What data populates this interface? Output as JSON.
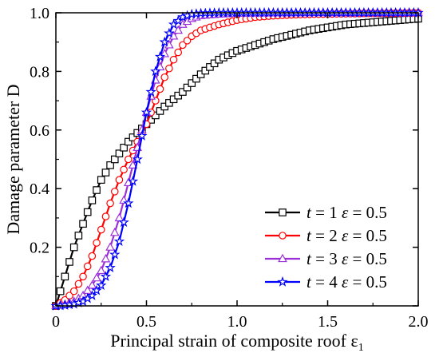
{
  "chart_data": {
    "type": "line",
    "xlabel": "Principal strain of composite roof ε",
    "xlabel_sub": "1",
    "ylabel": "Damage parameter D",
    "xlim": [
      0,
      2.0
    ],
    "ylim": [
      0,
      1.0
    ],
    "x_ticks": [
      "0",
      "0.5",
      "1.0",
      "1.5",
      "2.0"
    ],
    "y_ticks": [
      "0.2",
      "0.4",
      "0.6",
      "0.8",
      "1.0"
    ],
    "legend_position": "bottom-right",
    "grid": false,
    "series": [
      {
        "name": "t = 1 ε = 0.5",
        "t": "1",
        "eps": "0.5",
        "color": "#000000",
        "marker": "square",
        "x": [
          0.0,
          0.05,
          0.1,
          0.15,
          0.2,
          0.25,
          0.3,
          0.35,
          0.4,
          0.45,
          0.5,
          0.55,
          0.6,
          0.7,
          0.8,
          0.9,
          1.0,
          1.1,
          1.2,
          1.3,
          1.4,
          1.5,
          1.6,
          1.7,
          1.8,
          1.9,
          2.0
        ],
        "y": [
          0.0,
          0.1,
          0.2,
          0.28,
          0.36,
          0.43,
          0.48,
          0.52,
          0.56,
          0.59,
          0.62,
          0.65,
          0.68,
          0.73,
          0.79,
          0.84,
          0.87,
          0.89,
          0.91,
          0.925,
          0.94,
          0.95,
          0.96,
          0.965,
          0.97,
          0.975,
          0.98
        ]
      },
      {
        "name": "t = 2 ε = 0.5",
        "t": "2",
        "eps": "0.5",
        "color": "#ff0000",
        "marker": "circle",
        "x": [
          0.0,
          0.05,
          0.1,
          0.15,
          0.2,
          0.25,
          0.3,
          0.35,
          0.4,
          0.45,
          0.5,
          0.55,
          0.6,
          0.65,
          0.7,
          0.75,
          0.8,
          0.9,
          1.0,
          1.1,
          1.2,
          1.3,
          1.4,
          1.5,
          1.6,
          1.7,
          1.8,
          1.9,
          2.0
        ],
        "y": [
          0.0,
          0.02,
          0.05,
          0.1,
          0.17,
          0.26,
          0.35,
          0.43,
          0.5,
          0.56,
          0.62,
          0.7,
          0.78,
          0.84,
          0.89,
          0.92,
          0.94,
          0.96,
          0.975,
          0.985,
          0.99,
          0.993,
          0.995,
          0.996,
          0.997,
          0.998,
          0.998,
          0.999,
          1.0
        ]
      },
      {
        "name": "t = 3 ε = 0.5",
        "t": "3",
        "eps": "0.5",
        "color": "#9b30d9",
        "marker": "triangle",
        "x": [
          0.0,
          0.05,
          0.1,
          0.15,
          0.2,
          0.25,
          0.3,
          0.35,
          0.4,
          0.45,
          0.5,
          0.55,
          0.6,
          0.65,
          0.7,
          0.75,
          0.8,
          0.9,
          1.0,
          1.2,
          1.4,
          1.6,
          1.8,
          2.0
        ],
        "y": [
          0.0,
          0.005,
          0.015,
          0.035,
          0.07,
          0.12,
          0.2,
          0.3,
          0.42,
          0.54,
          0.66,
          0.77,
          0.86,
          0.92,
          0.96,
          0.98,
          0.99,
          0.995,
          0.998,
          0.999,
          1.0,
          1.0,
          1.0,
          1.0
        ]
      },
      {
        "name": "t = 4 ε = 0.5",
        "t": "4",
        "eps": "0.5",
        "color": "#0000ff",
        "marker": "star",
        "x": [
          0.0,
          0.05,
          0.1,
          0.15,
          0.2,
          0.25,
          0.3,
          0.35,
          0.4,
          0.45,
          0.5,
          0.55,
          0.6,
          0.65,
          0.7,
          0.75,
          0.8,
          0.9,
          1.0,
          1.2,
          1.4,
          1.6,
          1.8,
          2.0
        ],
        "y": [
          0.0,
          0.002,
          0.006,
          0.015,
          0.035,
          0.07,
          0.13,
          0.22,
          0.35,
          0.5,
          0.66,
          0.8,
          0.9,
          0.96,
          0.985,
          0.995,
          0.998,
          1.0,
          1.0,
          1.0,
          1.0,
          1.0,
          1.0,
          1.0
        ]
      }
    ]
  }
}
